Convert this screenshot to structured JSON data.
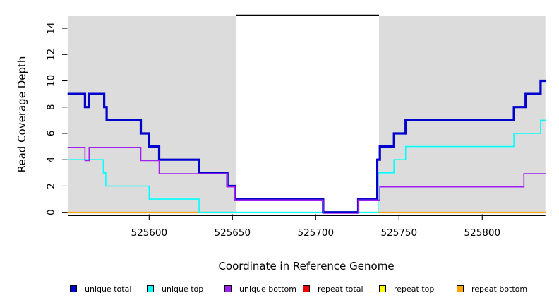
{
  "chart_data": {
    "type": "line",
    "step": true,
    "title": "",
    "xlabel": "Coordinate in Reference Genome",
    "ylabel": "Read Coverage Depth",
    "x_ticks": [
      525600,
      525650,
      525700,
      525750,
      525800
    ],
    "y_ticks": [
      0,
      2,
      4,
      6,
      8,
      10,
      12,
      14
    ],
    "x_range": [
      525551,
      525838
    ],
    "y_range": [
      0,
      15
    ],
    "grid": false,
    "plot_background": "#DCDCDC",
    "repeat_region": {
      "start": 525652,
      "end": 525738,
      "marker_depth": 15,
      "fill": "#FFFFFF",
      "line_color": "#000000"
    },
    "series": [
      {
        "name": "repeat total",
        "color": "#EE0000",
        "width": 1.4,
        "offset": 0,
        "points": [
          [
            525551,
            0
          ]
        ]
      },
      {
        "name": "repeat top",
        "color": "#FFFF00",
        "width": 1.4,
        "offset": 0,
        "points": [
          [
            525551,
            0
          ]
        ]
      },
      {
        "name": "repeat bottom",
        "color": "#FFA500",
        "width": 1.6,
        "offset": 0,
        "points": [
          [
            525551,
            0
          ]
        ]
      },
      {
        "name": "unique top",
        "color": "#00FFFF",
        "width": 1.6,
        "offset": 0,
        "points": [
          [
            525551,
            4
          ],
          [
            525572.5,
            3
          ],
          [
            525574,
            2
          ],
          [
            525600,
            1
          ],
          [
            525630,
            0
          ],
          [
            525737.5,
            3
          ],
          [
            525747,
            4
          ],
          [
            525754,
            5
          ],
          [
            525819,
            6
          ],
          [
            525835,
            7
          ]
        ]
      },
      {
        "name": "unique total",
        "color": "#0000CD",
        "width": 3.2,
        "offset": 0,
        "points": [
          [
            525551,
            9
          ],
          [
            525561.5,
            8
          ],
          [
            525564,
            9
          ],
          [
            525573,
            8
          ],
          [
            525574.5,
            7
          ],
          [
            525595,
            6
          ],
          [
            525600,
            5
          ],
          [
            525606,
            4
          ],
          [
            525630,
            3
          ],
          [
            525647,
            2
          ],
          [
            525651.5,
            1
          ],
          [
            525704.5,
            0
          ],
          [
            525725.5,
            1
          ],
          [
            525737,
            4
          ],
          [
            525738.5,
            5
          ],
          [
            525747,
            6
          ],
          [
            525754,
            7
          ],
          [
            525819,
            8
          ],
          [
            525826,
            9
          ],
          [
            525835,
            10
          ]
        ]
      },
      {
        "name": "unique bottom",
        "color": "#A020F0",
        "width": 1.6,
        "offset": 1.2,
        "points": [
          [
            525551,
            5
          ],
          [
            525561.5,
            4
          ],
          [
            525564,
            5
          ],
          [
            525595,
            4
          ],
          [
            525606,
            3
          ],
          [
            525647,
            2
          ],
          [
            525651.5,
            1
          ],
          [
            525704.5,
            0
          ],
          [
            525725.5,
            1
          ],
          [
            525738.5,
            2
          ],
          [
            525825,
            3
          ]
        ]
      }
    ]
  },
  "legend": {
    "items": [
      {
        "label": "unique total",
        "color": "#0000CD"
      },
      {
        "label": "unique top",
        "color": "#00FFFF"
      },
      {
        "label": "unique bottom",
        "color": "#A020F0"
      },
      {
        "label": "repeat total",
        "color": "#EE0000"
      },
      {
        "label": "repeat top",
        "color": "#FFFF00"
      },
      {
        "label": "repeat bottom",
        "color": "#FFA500"
      }
    ]
  }
}
